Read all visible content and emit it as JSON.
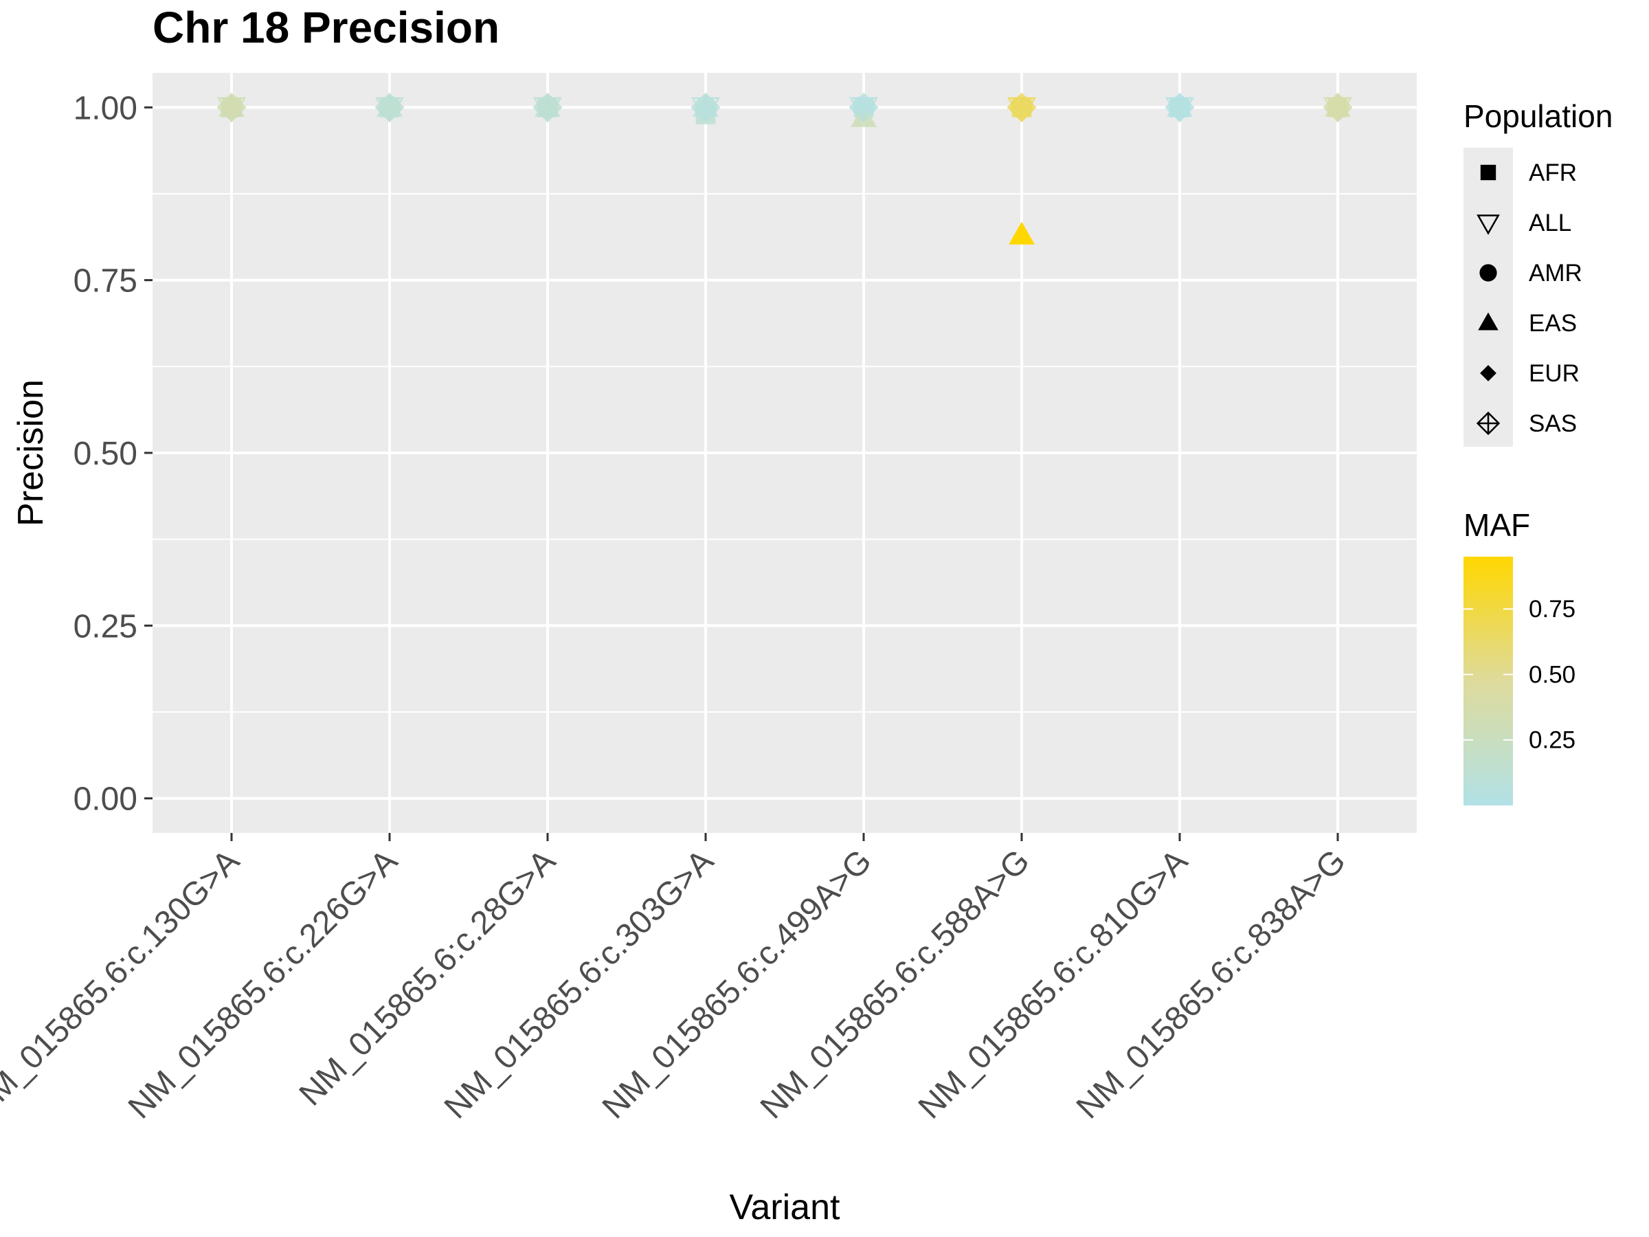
{
  "chart_data": {
    "type": "scatter",
    "title": "Chr 18 Precision",
    "xlabel": "Variant",
    "ylabel": "Precision",
    "ylim": [
      -0.05,
      1.05
    ],
    "yticks": [
      0.0,
      0.25,
      0.5,
      0.75,
      1.0
    ],
    "ytick_labels": [
      "0.00",
      "0.25",
      "0.50",
      "0.75",
      "1.00"
    ],
    "categories": [
      "NM_015865.6:c.130G>A",
      "NM_015865.6:c.226G>A",
      "NM_015865.6:c.28G>A",
      "NM_015865.6:c.303G>A",
      "NM_015865.6:c.499A>G",
      "NM_015865.6:c.588A>G",
      "NM_015865.6:c.810G>A",
      "NM_015865.6:c.838A>G"
    ],
    "shape_legend": {
      "title": "Population",
      "entries": [
        {
          "label": "AFR",
          "shape": "square"
        },
        {
          "label": "ALL",
          "shape": "triangle-down-open"
        },
        {
          "label": "AMR",
          "shape": "circle"
        },
        {
          "label": "EAS",
          "shape": "triangle-up"
        },
        {
          "label": "EUR",
          "shape": "diamond"
        },
        {
          "label": "SAS",
          "shape": "diamond-plus-open"
        }
      ]
    },
    "color_legend": {
      "title": "MAF",
      "min": 0.0,
      "max": 0.95,
      "ticks": [
        0.25,
        0.5,
        0.75
      ],
      "tick_labels": [
        "0.25",
        "0.50",
        "0.75"
      ],
      "low_color": "#b2e1e6",
      "mid_color": "#dedb9c",
      "high_color": "#ffd700"
    },
    "grid": true,
    "legend_position": "right",
    "points": [
      {
        "variant": "NM_015865.6:c.130G>A",
        "population": "AFR",
        "precision": 1.0,
        "maf": 0.35
      },
      {
        "variant": "NM_015865.6:c.130G>A",
        "population": "ALL",
        "precision": 1.0,
        "maf": 0.32
      },
      {
        "variant": "NM_015865.6:c.130G>A",
        "population": "AMR",
        "precision": 1.0,
        "maf": 0.33
      },
      {
        "variant": "NM_015865.6:c.130G>A",
        "population": "EAS",
        "precision": 1.0,
        "maf": 0.3
      },
      {
        "variant": "NM_015865.6:c.130G>A",
        "population": "EUR",
        "precision": 1.0,
        "maf": 0.36
      },
      {
        "variant": "NM_015865.6:c.130G>A",
        "population": "SAS",
        "precision": 1.0,
        "maf": 0.34
      },
      {
        "variant": "NM_015865.6:c.226G>A",
        "population": "AFR",
        "precision": 1.0,
        "maf": 0.15
      },
      {
        "variant": "NM_015865.6:c.226G>A",
        "population": "ALL",
        "precision": 1.0,
        "maf": 0.1
      },
      {
        "variant": "NM_015865.6:c.226G>A",
        "population": "AMR",
        "precision": 1.0,
        "maf": 0.12
      },
      {
        "variant": "NM_015865.6:c.226G>A",
        "population": "EAS",
        "precision": 1.0,
        "maf": 0.11
      },
      {
        "variant": "NM_015865.6:c.226G>A",
        "population": "EUR",
        "precision": 1.0,
        "maf": 0.13
      },
      {
        "variant": "NM_015865.6:c.226G>A",
        "population": "SAS",
        "precision": 1.0,
        "maf": 0.12
      },
      {
        "variant": "NM_015865.6:c.28G>A",
        "population": "AFR",
        "precision": 1.0,
        "maf": 0.15
      },
      {
        "variant": "NM_015865.6:c.28G>A",
        "population": "ALL",
        "precision": 1.0,
        "maf": 0.1
      },
      {
        "variant": "NM_015865.6:c.28G>A",
        "population": "AMR",
        "precision": 1.0,
        "maf": 0.12
      },
      {
        "variant": "NM_015865.6:c.28G>A",
        "population": "EAS",
        "precision": 1.0,
        "maf": 0.11
      },
      {
        "variant": "NM_015865.6:c.28G>A",
        "population": "EUR",
        "precision": 1.0,
        "maf": 0.13
      },
      {
        "variant": "NM_015865.6:c.28G>A",
        "population": "SAS",
        "precision": 1.0,
        "maf": 0.12
      },
      {
        "variant": "NM_015865.6:c.303G>A",
        "population": "AFR",
        "precision": 0.99,
        "maf": 0.12
      },
      {
        "variant": "NM_015865.6:c.303G>A",
        "population": "ALL",
        "precision": 1.0,
        "maf": 0.05
      },
      {
        "variant": "NM_015865.6:c.303G>A",
        "population": "AMR",
        "precision": 1.0,
        "maf": 0.07
      },
      {
        "variant": "NM_015865.6:c.303G>A",
        "population": "EAS",
        "precision": 1.0,
        "maf": 0.06
      },
      {
        "variant": "NM_015865.6:c.303G>A",
        "population": "EUR",
        "precision": 1.0,
        "maf": 0.08
      },
      {
        "variant": "NM_015865.6:c.303G>A",
        "population": "SAS",
        "precision": 1.0,
        "maf": 0.07
      },
      {
        "variant": "NM_015865.6:c.499A>G",
        "population": "AFR",
        "precision": 1.0,
        "maf": 0.05
      },
      {
        "variant": "NM_015865.6:c.499A>G",
        "population": "ALL",
        "precision": 1.0,
        "maf": 0.04
      },
      {
        "variant": "NM_015865.6:c.499A>G",
        "population": "AMR",
        "precision": 1.0,
        "maf": 0.05
      },
      {
        "variant": "NM_015865.6:c.499A>G",
        "population": "EAS",
        "precision": 0.985,
        "maf": 0.3
      },
      {
        "variant": "NM_015865.6:c.499A>G",
        "population": "EUR",
        "precision": 1.0,
        "maf": 0.04
      },
      {
        "variant": "NM_015865.6:c.499A>G",
        "population": "SAS",
        "precision": 1.0,
        "maf": 0.03
      },
      {
        "variant": "NM_015865.6:c.588A>G",
        "population": "AFR",
        "precision": 1.0,
        "maf": 0.62
      },
      {
        "variant": "NM_015865.6:c.588A>G",
        "population": "ALL",
        "precision": 1.0,
        "maf": 0.68
      },
      {
        "variant": "NM_015865.6:c.588A>G",
        "population": "AMR",
        "precision": 1.0,
        "maf": 0.66
      },
      {
        "variant": "NM_015865.6:c.588A>G",
        "population": "EAS",
        "precision": 0.815,
        "maf": 0.95
      },
      {
        "variant": "NM_015865.6:c.588A>G",
        "population": "EUR",
        "precision": 1.0,
        "maf": 0.64
      },
      {
        "variant": "NM_015865.6:c.588A>G",
        "population": "SAS",
        "precision": 1.0,
        "maf": 0.67
      },
      {
        "variant": "NM_015865.6:c.810G>A",
        "population": "AFR",
        "precision": 1.0,
        "maf": 0.03
      },
      {
        "variant": "NM_015865.6:c.810G>A",
        "population": "ALL",
        "precision": 1.0,
        "maf": 0.02
      },
      {
        "variant": "NM_015865.6:c.810G>A",
        "population": "AMR",
        "precision": 1.0,
        "maf": 0.03
      },
      {
        "variant": "NM_015865.6:c.810G>A",
        "population": "EAS",
        "precision": 1.0,
        "maf": 0.02
      },
      {
        "variant": "NM_015865.6:c.810G>A",
        "population": "EUR",
        "precision": 1.0,
        "maf": 0.03
      },
      {
        "variant": "NM_015865.6:c.810G>A",
        "population": "SAS",
        "precision": 1.0,
        "maf": 0.02
      },
      {
        "variant": "NM_015865.6:c.838A>G",
        "population": "AFR",
        "precision": 1.0,
        "maf": 0.4
      },
      {
        "variant": "NM_015865.6:c.838A>G",
        "population": "ALL",
        "precision": 1.0,
        "maf": 0.38
      },
      {
        "variant": "NM_015865.6:c.838A>G",
        "population": "AMR",
        "precision": 1.0,
        "maf": 0.39
      },
      {
        "variant": "NM_015865.6:c.838A>G",
        "population": "EAS",
        "precision": 1.0,
        "maf": 0.37
      },
      {
        "variant": "NM_015865.6:c.838A>G",
        "population": "EUR",
        "precision": 1.0,
        "maf": 0.4
      },
      {
        "variant": "NM_015865.6:c.838A>G",
        "population": "SAS",
        "precision": 1.0,
        "maf": 0.38
      }
    ]
  }
}
